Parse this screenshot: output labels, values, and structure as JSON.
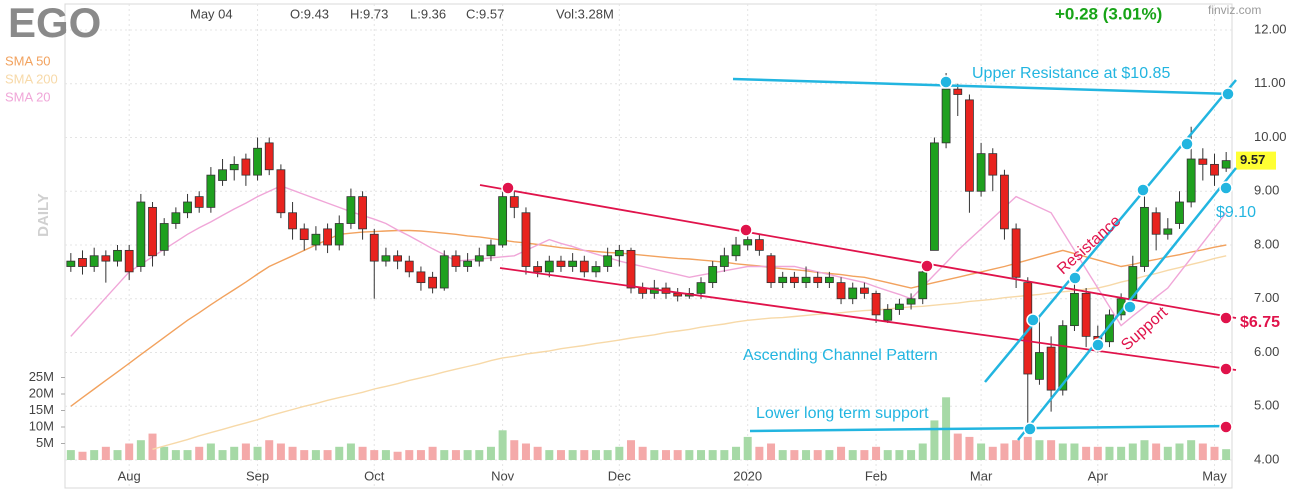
{
  "header": {
    "ticker": "EGO",
    "date": "May 04",
    "open": "O:9.43",
    "high": "H:9.73",
    "low": "L:9.36",
    "close": "C:9.57",
    "volume": "Vol:3.28M",
    "change": "+0.28 (3.01%)",
    "source": "finviz.com",
    "period": "DAILY"
  },
  "chart_data": {
    "type": "candlestick",
    "categories": [
      null,
      null,
      null,
      null,
      null,
      "Aug",
      null,
      null,
      null,
      null,
      null,
      null,
      null,
      null,
      null,
      null,
      "Sep",
      null,
      null,
      null,
      null,
      null,
      null,
      null,
      null,
      null,
      "Oct",
      null,
      null,
      null,
      null,
      null,
      null,
      null,
      null,
      null,
      null,
      "Nov",
      null,
      null,
      null,
      null,
      null,
      null,
      null,
      null,
      null,
      "Dec",
      null,
      null,
      null,
      null,
      null,
      null,
      null,
      null,
      null,
      null,
      "2020",
      null,
      null,
      null,
      null,
      null,
      null,
      null,
      null,
      null,
      null,
      "Feb",
      null,
      null,
      null,
      null,
      null,
      null,
      null,
      null,
      "Mar",
      null,
      null,
      null,
      null,
      null,
      null,
      null,
      null,
      null,
      "Apr",
      null,
      null,
      null,
      null,
      null,
      null,
      null,
      null,
      null,
      "May",
      null
    ],
    "open": [
      7.6,
      7.75,
      7.6,
      7.8,
      7.7,
      7.9,
      7.6,
      8.7,
      7.9,
      8.4,
      8.6,
      8.9,
      8.7,
      9.2,
      9.4,
      9.6,
      9.3,
      9.9,
      9.4,
      8.6,
      8.3,
      8.0,
      8.3,
      8.0,
      8.4,
      8.9,
      8.2,
      7.7,
      7.8,
      7.7,
      7.5,
      7.4,
      7.2,
      7.8,
      7.6,
      7.7,
      7.8,
      8.0,
      8.9,
      8.6,
      7.6,
      7.5,
      7.7,
      7.6,
      7.7,
      7.5,
      7.6,
      7.8,
      7.9,
      7.2,
      7.1,
      7.2,
      7.1,
      7.05,
      7.1,
      7.3,
      7.6,
      7.8,
      8.0,
      8.1,
      7.8,
      7.3,
      7.4,
      7.3,
      7.4,
      7.3,
      7.3,
      7.0,
      7.2,
      7.1,
      6.6,
      6.8,
      6.9,
      7.0,
      7.9,
      9.9,
      10.9,
      10.7,
      9.0,
      9.7,
      9.3,
      8.3,
      7.3,
      5.5,
      6.1,
      5.3,
      6.5,
      7.1,
      6.3,
      6.2,
      6.7,
      7.0,
      7.6,
      8.6,
      8.2,
      8.4,
      8.8,
      9.6,
      9.5,
      9.43
    ],
    "high": [
      7.85,
      7.9,
      7.95,
      7.9,
      8.0,
      8.0,
      8.95,
      8.8,
      8.5,
      8.7,
      8.95,
      9.0,
      9.45,
      9.6,
      9.65,
      9.7,
      10.0,
      10.0,
      9.5,
      8.8,
      8.4,
      8.35,
      8.4,
      8.55,
      9.05,
      9.0,
      8.3,
      7.95,
      7.9,
      7.8,
      7.6,
      7.5,
      7.9,
      7.9,
      7.85,
      7.95,
      8.1,
      9.05,
      9.0,
      8.7,
      7.7,
      7.8,
      7.8,
      7.85,
      7.8,
      7.7,
      7.95,
      8.0,
      7.95,
      7.3,
      7.35,
      7.3,
      7.2,
      7.2,
      7.4,
      7.7,
      7.95,
      8.15,
      8.25,
      8.2,
      7.85,
      7.5,
      7.5,
      7.6,
      7.5,
      7.5,
      7.4,
      7.3,
      7.3,
      7.15,
      6.9,
      7.0,
      7.1,
      7.7,
      10.0,
      11.2,
      11.0,
      10.8,
      9.9,
      9.8,
      9.4,
      8.4,
      7.4,
      6.7,
      6.3,
      6.6,
      7.4,
      7.2,
      6.5,
      6.8,
      7.1,
      7.8,
      9.0,
      8.7,
      8.5,
      9.0,
      10.2,
      9.8,
      9.7,
      9.73
    ],
    "low": [
      7.5,
      7.45,
      7.5,
      7.3,
      7.6,
      7.35,
      7.5,
      7.6,
      7.8,
      8.3,
      8.5,
      8.6,
      8.6,
      9.1,
      9.2,
      9.1,
      9.2,
      9.3,
      8.5,
      8.1,
      7.9,
      7.9,
      7.85,
      7.9,
      8.3,
      8.1,
      7.0,
      7.6,
      7.55,
      7.4,
      7.15,
      7.1,
      7.15,
      7.5,
      7.5,
      7.6,
      7.7,
      7.95,
      8.5,
      7.45,
      7.4,
      7.4,
      7.5,
      7.5,
      7.4,
      7.4,
      7.5,
      7.6,
      7.1,
      7.0,
      7.0,
      7.0,
      6.95,
      7.0,
      7.0,
      7.2,
      7.5,
      7.7,
      7.9,
      7.8,
      7.2,
      7.2,
      7.2,
      7.2,
      7.2,
      7.2,
      6.9,
      6.9,
      7.0,
      6.55,
      6.55,
      6.7,
      6.8,
      6.9,
      7.9,
      9.8,
      10.4,
      8.6,
      8.9,
      9.0,
      8.1,
      7.2,
      4.6,
      5.4,
      4.9,
      5.2,
      6.4,
      6.1,
      6.0,
      6.1,
      6.6,
      6.9,
      7.5,
      7.9,
      8.1,
      8.3,
      8.7,
      9.2,
      9.1,
      9.36
    ],
    "close": [
      7.7,
      7.6,
      7.8,
      7.7,
      7.9,
      7.5,
      8.8,
      7.8,
      8.4,
      8.6,
      8.8,
      8.7,
      9.3,
      9.4,
      9.5,
      9.3,
      9.8,
      9.4,
      8.6,
      8.3,
      8.1,
      8.2,
      8.0,
      8.4,
      8.9,
      8.3,
      7.7,
      7.8,
      7.7,
      7.5,
      7.3,
      7.2,
      7.8,
      7.6,
      7.7,
      7.8,
      8.0,
      8.9,
      8.7,
      7.6,
      7.5,
      7.7,
      7.6,
      7.7,
      7.5,
      7.6,
      7.8,
      7.9,
      7.2,
      7.1,
      7.2,
      7.1,
      7.05,
      7.1,
      7.3,
      7.6,
      7.8,
      8.0,
      8.1,
      7.9,
      7.3,
      7.4,
      7.3,
      7.4,
      7.3,
      7.4,
      7.0,
      7.2,
      7.1,
      6.7,
      6.8,
      6.9,
      7.0,
      7.5,
      9.9,
      10.9,
      10.8,
      9.0,
      9.7,
      9.3,
      8.3,
      7.4,
      5.6,
      6.0,
      5.3,
      6.5,
      7.1,
      6.3,
      6.2,
      6.7,
      7.0,
      7.6,
      8.7,
      8.2,
      8.3,
      8.8,
      9.6,
      9.5,
      9.3,
      9.57
    ],
    "up_color": "#1fa01f",
    "down_color": "#e8231e",
    "up_volume_color": "#a6d9a6",
    "down_volume_color": "#f4a9a9",
    "ylim": [
      4,
      12
    ],
    "yticks": [
      {
        "value": 12,
        "label": "12.00"
      },
      {
        "value": 11,
        "label": "11.00"
      },
      {
        "value": 10,
        "label": "10.00"
      },
      {
        "value": 9,
        "label": "9.00"
      },
      {
        "value": 8,
        "label": "8.00"
      },
      {
        "value": 7,
        "label": "7.00"
      },
      {
        "value": 6,
        "label": "6.00"
      },
      {
        "value": 5,
        "label": "5.00"
      },
      {
        "value": 4,
        "label": "4.00"
      }
    ],
    "grid": true,
    "volume": {
      "values": [
        3,
        2.5,
        3,
        4,
        3,
        5,
        6,
        8,
        4,
        3,
        3,
        4,
        5,
        3,
        4,
        5,
        4,
        6,
        5,
        4,
        3,
        3,
        3,
        4,
        5,
        4,
        3,
        3,
        2.5,
        3,
        3,
        4,
        3,
        3,
        3,
        3,
        4,
        9,
        6,
        5,
        4,
        3,
        3,
        3,
        3,
        3,
        3,
        4,
        6,
        4,
        3,
        3,
        3,
        3,
        3,
        3,
        3,
        4,
        7,
        4,
        5,
        3,
        3,
        3,
        3,
        3,
        4,
        3,
        3,
        4,
        3,
        3,
        3,
        5,
        12,
        19,
        8,
        7,
        5,
        4,
        5,
        6,
        7,
        6,
        6,
        5,
        5,
        4,
        4,
        4,
        4,
        5,
        6,
        5,
        4,
        5,
        6,
        5,
        4,
        3.28
      ],
      "ylim": [
        0,
        30
      ],
      "yticks": [
        {
          "value": 5,
          "label": "5M"
        },
        {
          "value": 10,
          "label": "10M"
        },
        {
          "value": 15,
          "label": "15M"
        },
        {
          "value": 20,
          "label": "20M"
        },
        {
          "value": 25,
          "label": "25M"
        }
      ]
    },
    "lines": [
      {
        "name": "SMA 50",
        "color": "#f2a25e",
        "values": [
          5.0,
          5.16,
          5.32,
          5.48,
          5.64,
          5.8,
          5.96,
          6.12,
          6.28,
          6.44,
          6.6,
          6.74,
          6.89,
          7.03,
          7.17,
          7.31,
          7.46,
          7.6,
          7.7,
          7.8,
          7.9,
          8.0,
          8.1,
          8.2,
          8.22,
          8.24,
          8.25,
          8.26,
          8.27,
          8.27,
          8.26,
          8.24,
          8.22,
          8.2,
          8.17,
          8.15,
          8.12,
          8.09,
          8.06,
          8.04,
          8.01,
          7.98,
          7.95,
          7.93,
          7.9,
          7.88,
          7.86,
          7.85,
          7.83,
          7.81,
          7.79,
          7.77,
          7.75,
          7.74,
          7.72,
          7.7,
          7.68,
          7.65,
          7.63,
          7.61,
          7.58,
          7.56,
          7.54,
          7.52,
          7.49,
          7.47,
          7.45,
          7.42,
          7.4,
          7.35,
          7.3,
          7.25,
          7.2,
          7.25,
          7.3,
          7.35,
          7.4,
          7.45,
          7.5,
          7.55,
          7.6,
          7.66,
          7.72,
          7.78,
          7.84,
          7.9,
          7.84,
          7.78,
          7.72,
          7.66,
          7.6,
          7.64,
          7.69,
          7.73,
          7.78,
          7.82,
          7.87,
          7.91,
          7.96,
          8.0
        ]
      },
      {
        "name": "SMA 200",
        "color": "#f7d9a8",
        "values": [
          null,
          null,
          null,
          null,
          null,
          null,
          null,
          4.2,
          4.26,
          4.32,
          4.38,
          4.45,
          4.51,
          4.57,
          4.63,
          4.69,
          4.75,
          4.82,
          4.88,
          4.94,
          5.0,
          5.05,
          5.11,
          5.16,
          5.21,
          5.26,
          5.32,
          5.37,
          5.42,
          5.48,
          5.53,
          5.58,
          5.64,
          5.69,
          5.74,
          5.79,
          5.85,
          5.9,
          5.93,
          5.97,
          6.0,
          6.03,
          6.07,
          6.1,
          6.13,
          6.17,
          6.2,
          6.23,
          6.27,
          6.3,
          6.33,
          6.37,
          6.4,
          6.43,
          6.47,
          6.5,
          6.53,
          6.57,
          6.6,
          6.62,
          6.64,
          6.65,
          6.67,
          6.69,
          6.71,
          6.72,
          6.74,
          6.76,
          6.78,
          6.79,
          6.81,
          6.83,
          6.85,
          6.86,
          6.88,
          6.9,
          6.92,
          6.95,
          6.97,
          6.99,
          7.02,
          7.04,
          7.06,
          7.08,
          7.11,
          7.13,
          7.15,
          7.18,
          7.2,
          7.25,
          7.31,
          7.36,
          7.42,
          7.47,
          7.53,
          7.58,
          7.64,
          7.69,
          7.75,
          7.8
        ]
      },
      {
        "name": "SMA 20",
        "color": "#f0a6d8",
        "values": [
          6.3,
          6.54,
          6.78,
          7.02,
          7.26,
          7.5,
          7.64,
          7.78,
          7.92,
          8.06,
          8.2,
          8.32,
          8.43,
          8.55,
          8.67,
          8.78,
          8.9,
          9.0,
          9.1,
          9.02,
          8.94,
          8.86,
          8.78,
          8.7,
          8.62,
          8.55,
          8.48,
          8.4,
          8.28,
          8.17,
          8.05,
          7.93,
          7.82,
          7.7,
          7.72,
          7.74,
          7.76,
          7.78,
          7.8,
          7.9,
          8.0,
          8.1,
          8.03,
          7.97,
          7.9,
          7.83,
          7.77,
          7.7,
          7.65,
          7.6,
          7.55,
          7.5,
          7.45,
          7.4,
          7.44,
          7.48,
          7.52,
          7.56,
          7.6,
          7.6,
          7.6,
          7.6,
          7.6,
          7.55,
          7.5,
          7.45,
          7.4,
          7.35,
          7.3,
          7.22,
          7.15,
          7.08,
          7.0,
          7.22,
          7.45,
          7.67,
          7.9,
          8.1,
          8.3,
          8.5,
          8.7,
          8.9,
          8.8,
          8.7,
          8.6,
          8.25,
          7.9,
          7.55,
          7.2,
          6.85,
          6.5,
          6.68,
          6.85,
          7.03,
          7.2,
          7.48,
          7.76,
          8.04,
          8.32,
          8.6
        ]
      }
    ],
    "annotations": [
      "Upper Resistance at $10.85",
      "$9.10",
      "Ascending Channel Pattern",
      "Lower long term support",
      "Resistance",
      "Support",
      "$6.75"
    ]
  }
}
